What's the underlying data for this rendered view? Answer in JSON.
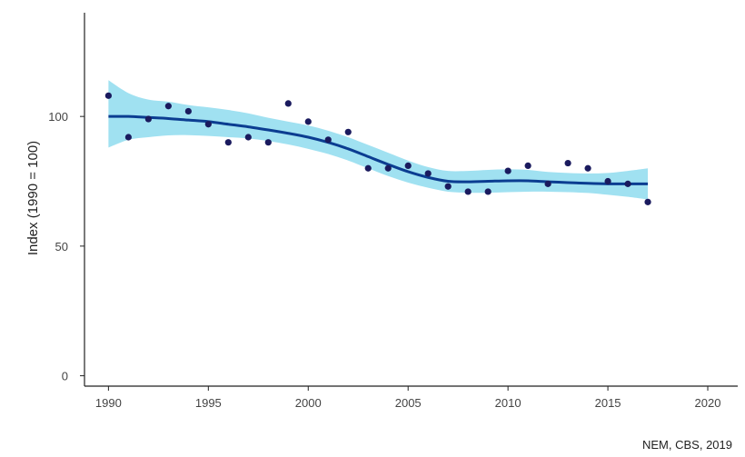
{
  "chart_data": {
    "type": "scatter",
    "title": "",
    "xlabel": "",
    "ylabel": "Index (1990 = 100)",
    "xlim": [
      1988.8,
      2021.5
    ],
    "ylim": [
      -4,
      140
    ],
    "x_ticks": [
      1990,
      1995,
      2000,
      2005,
      2010,
      2015,
      2020
    ],
    "y_ticks": [
      0,
      50,
      100
    ],
    "grid": false,
    "legend": "none",
    "series": [
      {
        "kind": "points",
        "color": "#1a1a5e",
        "x": [
          1990,
          1991,
          1992,
          1993,
          1994,
          1995,
          1996,
          1997,
          1998,
          1999,
          2000,
          2001,
          2002,
          2003,
          2004,
          2005,
          2006,
          2007,
          2008,
          2009,
          2010,
          2011,
          2012,
          2013,
          2014,
          2015,
          2016,
          2017
        ],
        "y": [
          108,
          92,
          99,
          104,
          102,
          97,
          90,
          92,
          90,
          105,
          98,
          91,
          94,
          80,
          80,
          81,
          78,
          73,
          71,
          71,
          79,
          81,
          74,
          82,
          80,
          75,
          74,
          67
        ]
      },
      {
        "kind": "trend",
        "color": "#0b3d91",
        "band_color": "#8fdcef",
        "x": [
          1990,
          1991,
          1992,
          1993,
          1994,
          1995,
          1996,
          1997,
          1998,
          1999,
          2000,
          2001,
          2002,
          2003,
          2004,
          2005,
          2006,
          2007,
          2008,
          2009,
          2010,
          2011,
          2012,
          2013,
          2014,
          2015,
          2016,
          2017
        ],
        "y": [
          100,
          100,
          99.6,
          99.2,
          98.6,
          98,
          97,
          96,
          94.8,
          93.5,
          92,
          90,
          87.5,
          84.5,
          81.5,
          78.7,
          76.5,
          75,
          74.8,
          75,
          75.2,
          75.2,
          74.8,
          74.5,
          74.2,
          74,
          74,
          74
        ],
        "lower": [
          88,
          91,
          92,
          92.7,
          92.8,
          92.5,
          92,
          91.5,
          90.5,
          89.2,
          87.5,
          85.5,
          83,
          80,
          77,
          74.5,
          72.5,
          71,
          70.6,
          70.6,
          70.8,
          71,
          71,
          70.8,
          70.5,
          69.8,
          69,
          68
        ],
        "upper": [
          114,
          109,
          106.5,
          105.7,
          104.4,
          103.5,
          102.5,
          101.2,
          99.5,
          98,
          96.5,
          94.5,
          92,
          89,
          86,
          83,
          80.5,
          79,
          79,
          79.4,
          79.6,
          79.4,
          78.6,
          78.2,
          78,
          78.2,
          79,
          80
        ]
      }
    ]
  },
  "source": "NEM, CBS, 2019"
}
